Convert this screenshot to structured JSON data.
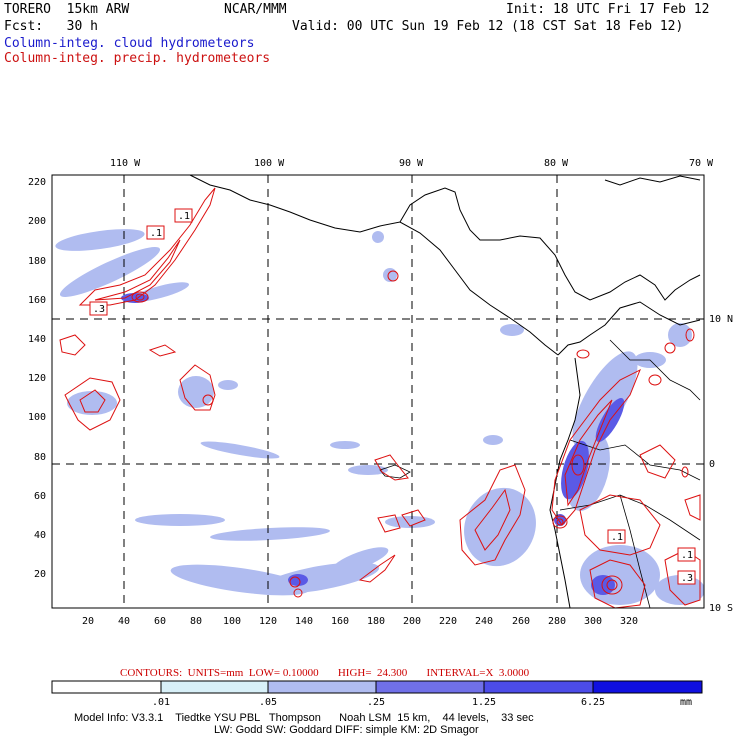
{
  "header": {
    "model": "TORERO  15km ARW",
    "org": "NCAR/MMM",
    "init": "Init: 18 UTC Fri 17 Feb 12",
    "fcst": "Fcst:   30 h",
    "valid": "Valid: 00 UTC Sun 19 Feb 12 (18 CST Sat 18 Feb 12)",
    "legend_cloud": "Column-integ. cloud hydrometeors",
    "legend_precip": "Column-integ. precip. hydrometeors"
  },
  "map": {
    "top_lon_labels": [
      "110 W",
      "100 W",
      "90 W",
      "80 W",
      "70 W"
    ],
    "right_lat_labels": [
      "10 N",
      "0",
      "10 S"
    ],
    "y_ticks": [
      "220",
      "200",
      "180",
      "160",
      "140",
      "120",
      "100",
      "80",
      "60",
      "40",
      "20"
    ],
    "x_ticks": [
      "20",
      "40",
      "60",
      "80",
      "100",
      "120",
      "140",
      "160",
      "180",
      "200",
      "220",
      "240",
      "260",
      "280",
      "300",
      "320"
    ],
    "contour_labels": [
      ".1",
      ".1",
      ".3",
      ".1",
      ".1",
      ".3"
    ]
  },
  "contours_text": "CONTOURS:  UNITS=mm  LOW= 0.10000       HIGH=  24.300       INTERVAL=X  3.0000",
  "colorbar": {
    "labels": [
      ".01",
      ".05",
      ".25",
      "1.25",
      "6.25"
    ],
    "unit": "mm",
    "colors": [
      "#ffffff",
      "#d8f0f8",
      "#b0bcf0",
      "#7070e8",
      "#4c4ce8",
      "#1010e0"
    ]
  },
  "model_info": {
    "line1": "Model Info: V3.3.1    Tiedtke YSU PBL   Thompson      Noah LSM  15 km,    44 levels,    33 sec",
    "line2": "LW: Godd SW: Goddard DIFF: simple KM: 2D Smagor"
  }
}
